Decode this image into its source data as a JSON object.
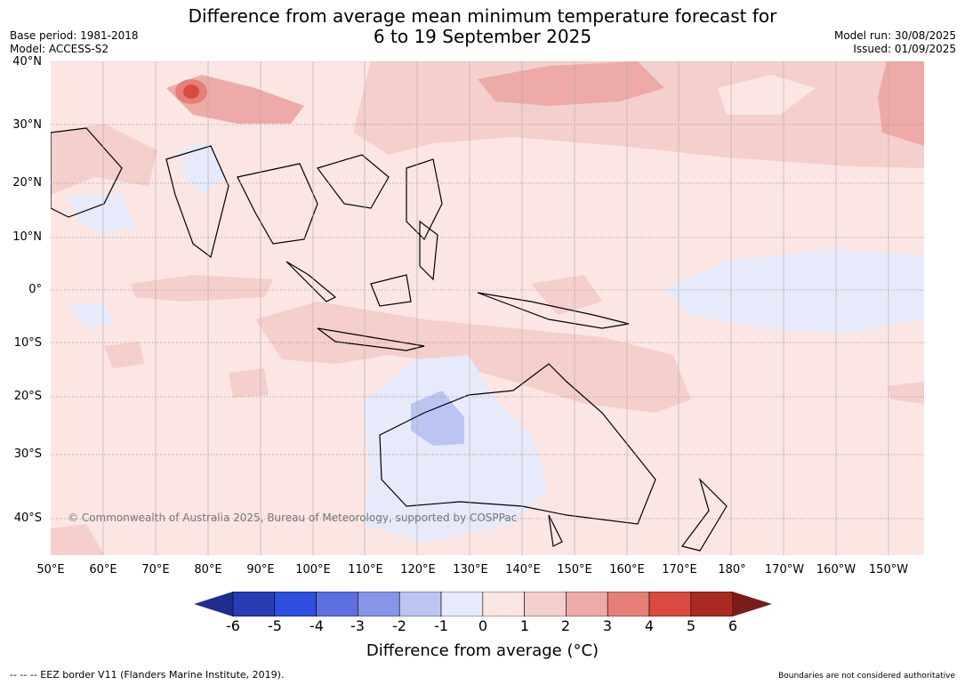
{
  "title_line1": "Difference from average mean minimum temperature forecast for",
  "title_line2": "6 to 19 September 2025",
  "meta": {
    "base_period": "Base period: 1981-2018",
    "model": "Model: ACCESS-S2",
    "model_run": "Model run: 30/08/2025",
    "issued": "Issued: 01/09/2025"
  },
  "latitude_labels": [
    "40°N",
    "30°N",
    "20°N",
    "10°N",
    "0°",
    "10°S",
    "20°S",
    "30°S",
    "40°S"
  ],
  "longitude_labels": [
    "50°E",
    "60°E",
    "70°E",
    "80°E",
    "90°E",
    "100°E",
    "110°E",
    "120°E",
    "130°E",
    "140°E",
    "150°E",
    "160°E",
    "170°E",
    "180°",
    "170°W",
    "160°W",
    "150°W"
  ],
  "copyright": "© Commonwealth of Australia 2025, Bureau of Meteorology, supported by COSPPac",
  "colorbar": {
    "ticks": [
      "-6",
      "-5",
      "-4",
      "-3",
      "-2",
      "-1",
      "0",
      "1",
      "2",
      "3",
      "4",
      "5",
      "6"
    ],
    "colors": [
      "#1e2d8c",
      "#283cb4",
      "#2f4fe0",
      "#5c70e0",
      "#8595e8",
      "#bcc5f2",
      "#e6eafa",
      "#fbe6e4",
      "#f4cfcc",
      "#eeaaa6",
      "#e57f78",
      "#d94a3f",
      "#a82a22",
      "#7a1c18"
    ],
    "label": "Difference from average (°C)"
  },
  "footer": {
    "eez": "--  --  -- EEZ border V11 (Flanders Marine Institute, 2019).",
    "boundaries": "Boundaries are not considered authoritative"
  }
}
